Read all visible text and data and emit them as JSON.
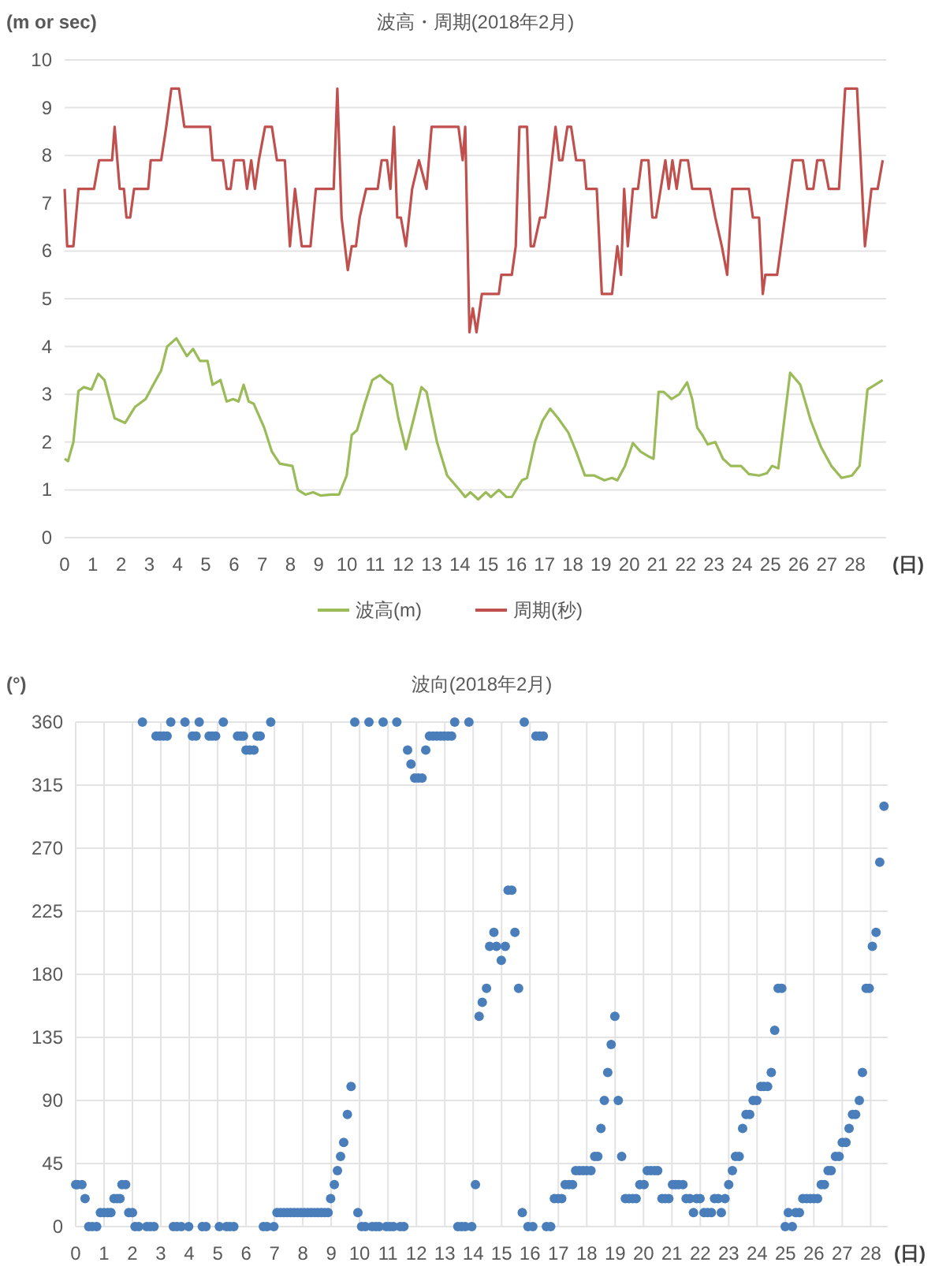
{
  "chart_data": [
    {
      "type": "line",
      "title": "波高・周期(2018年2月)",
      "ylabel": "(m or sec)",
      "xlabel": "(日)",
      "xlim": [
        0,
        29.1
      ],
      "xticks": [
        0,
        1,
        2,
        3,
        4,
        5,
        6,
        7,
        8,
        9,
        10,
        11,
        12,
        13,
        14,
        15,
        16,
        17,
        18,
        19,
        20,
        21,
        22,
        23,
        24,
        25,
        26,
        27,
        28
      ],
      "ylim": [
        0,
        10
      ],
      "yticks": [
        0,
        1,
        2,
        3,
        4,
        5,
        6,
        7,
        8,
        9,
        10
      ],
      "grid": "y",
      "legend": "bottom",
      "series": [
        {
          "name": "波高(m)",
          "color": "#9bbb59",
          "x": [
            0,
            0.12,
            0.31,
            0.49,
            0.68,
            0.95,
            1.19,
            1.41,
            1.59,
            1.77,
            2.14,
            2.5,
            2.87,
            3.14,
            3.42,
            3.63,
            3.96,
            4.33,
            4.55,
            4.79,
            5.06,
            5.24,
            5.52,
            5.74,
            5.97,
            6.16,
            6.34,
            6.52,
            6.7,
            7.07,
            7.34,
            7.62,
            8.07,
            8.26,
            8.53,
            8.8,
            9.08,
            9.44,
            9.72,
            9.99,
            10.17,
            10.36,
            10.63,
            10.9,
            11.18,
            11.36,
            11.6,
            11.82,
            12.09,
            12.37,
            12.64,
            12.82,
            13.19,
            13.55,
            14.0,
            14.19,
            14.37,
            14.65,
            14.92,
            15.1,
            15.38,
            15.65,
            15.84,
            16.2,
            16.38,
            16.66,
            16.93,
            17.2,
            17.48,
            17.84,
            18.12,
            18.43,
            18.76,
            19.12,
            19.39,
            19.58,
            19.85,
            20.13,
            20.4,
            20.68,
            20.86,
            21.04,
            21.22,
            21.5,
            21.77,
            22.05,
            22.23,
            22.41,
            22.59,
            22.78,
            23.05,
            23.32,
            23.6,
            23.96,
            24.24,
            24.6,
            24.88,
            25.06,
            25.28,
            25.7,
            26.06,
            26.43,
            26.79,
            27.16,
            27.52,
            27.89,
            28.16,
            28.44,
            28.71,
            28.98
          ],
          "values": [
            1.65,
            1.6,
            2.0,
            3.07,
            3.15,
            3.1,
            3.43,
            3.3,
            2.9,
            2.5,
            2.4,
            2.74,
            2.9,
            3.2,
            3.5,
            4.0,
            4.17,
            3.8,
            3.95,
            3.7,
            3.7,
            3.2,
            3.3,
            2.85,
            2.9,
            2.85,
            3.2,
            2.85,
            2.8,
            2.3,
            1.8,
            1.55,
            1.5,
            1.0,
            0.9,
            0.95,
            0.88,
            0.9,
            0.9,
            1.3,
            2.15,
            2.25,
            2.8,
            3.3,
            3.4,
            3.3,
            3.2,
            2.5,
            1.85,
            2.5,
            3.15,
            3.05,
            2.0,
            1.3,
            0.99,
            0.85,
            0.95,
            0.8,
            0.95,
            0.85,
            1.0,
            0.85,
            0.85,
            1.2,
            1.25,
            2.0,
            2.45,
            2.7,
            2.5,
            2.2,
            1.8,
            1.3,
            1.3,
            1.2,
            1.25,
            1.2,
            1.5,
            1.98,
            1.8,
            1.7,
            1.65,
            3.05,
            3.05,
            2.9,
            3.0,
            3.25,
            2.9,
            2.3,
            2.15,
            1.95,
            2.0,
            1.65,
            1.5,
            1.5,
            1.33,
            1.3,
            1.35,
            1.5,
            1.45,
            3.45,
            3.2,
            2.45,
            1.9,
            1.5,
            1.25,
            1.3,
            1.5,
            3.1,
            3.2,
            3.3
          ]
        },
        {
          "name": "周期(秒)",
          "color": "#c0504d",
          "x": [
            0,
            0.09,
            0.31,
            0.49,
            1.04,
            1.22,
            1.68,
            1.77,
            1.95,
            2.1,
            2.19,
            2.32,
            2.46,
            2.96,
            3.05,
            3.42,
            3.6,
            3.78,
            4.05,
            4.24,
            5.15,
            5.24,
            5.61,
            5.74,
            5.88,
            6.01,
            6.34,
            6.46,
            6.61,
            6.74,
            6.88,
            7.1,
            7.34,
            7.52,
            7.8,
            7.98,
            8.16,
            8.4,
            8.71,
            8.9,
            9.53,
            9.66,
            9.81,
            10.03,
            10.17,
            10.32,
            10.45,
            10.68,
            11.09,
            11.23,
            11.42,
            11.54,
            11.67,
            11.78,
            11.91,
            12.09,
            12.31,
            12.55,
            12.82,
            13.0,
            13.95,
            14.1,
            14.19,
            14.34,
            14.46,
            14.59,
            14.78,
            15.38,
            15.47,
            15.84,
            15.98,
            16.11,
            16.38,
            16.51,
            16.62,
            16.84,
            17.02,
            17.15,
            17.39,
            17.52,
            17.63,
            17.81,
            17.94,
            18.12,
            18.4,
            18.48,
            18.85,
            19.03,
            19.39,
            19.58,
            19.71,
            19.82,
            19.95,
            20.13,
            20.31,
            20.44,
            20.68,
            20.82,
            20.95,
            21.28,
            21.4,
            21.53,
            21.68,
            21.82,
            22.08,
            22.23,
            22.86,
            23.05,
            23.28,
            23.47,
            23.65,
            24.24,
            24.38,
            24.6,
            24.73,
            24.82,
            25.24,
            25.79,
            26.15,
            26.3,
            26.52,
            26.66,
            26.88,
            27.07,
            27.43,
            27.65,
            28.07,
            28.35,
            28.58,
            28.8,
            28.98
          ],
          "values": [
            7.3,
            6.1,
            6.1,
            7.3,
            7.3,
            7.9,
            7.9,
            8.6,
            7.3,
            7.3,
            6.7,
            6.7,
            7.3,
            7.3,
            7.9,
            7.9,
            8.6,
            9.4,
            9.4,
            8.6,
            8.6,
            7.9,
            7.9,
            7.3,
            7.3,
            7.9,
            7.9,
            7.3,
            7.9,
            7.3,
            7.9,
            8.6,
            8.6,
            7.9,
            7.9,
            6.1,
            7.3,
            6.1,
            6.1,
            7.3,
            7.3,
            9.4,
            6.7,
            5.6,
            6.1,
            6.1,
            6.7,
            7.3,
            7.3,
            7.9,
            7.9,
            7.3,
            8.6,
            6.7,
            6.7,
            6.1,
            7.3,
            7.9,
            7.3,
            8.6,
            8.6,
            7.9,
            8.6,
            4.3,
            4.8,
            4.3,
            5.1,
            5.1,
            5.5,
            5.5,
            6.1,
            8.6,
            8.6,
            6.1,
            6.1,
            6.7,
            6.7,
            7.3,
            8.6,
            7.9,
            7.9,
            8.6,
            8.6,
            7.9,
            7.9,
            7.3,
            7.3,
            5.1,
            5.1,
            6.1,
            5.5,
            7.3,
            6.1,
            7.3,
            7.3,
            7.9,
            7.9,
            6.7,
            6.7,
            7.9,
            7.3,
            7.9,
            7.3,
            7.9,
            7.9,
            7.3,
            7.3,
            6.7,
            6.1,
            5.5,
            7.3,
            7.3,
            6.7,
            6.7,
            5.1,
            5.5,
            5.5,
            7.9,
            7.9,
            7.3,
            7.3,
            7.9,
            7.9,
            7.3,
            7.3,
            9.4,
            9.4,
            6.1,
            7.3,
            7.3,
            7.9
          ]
        }
      ]
    },
    {
      "type": "scatter",
      "title": "波向(2018年2月)",
      "ylabel": "(°)",
      "xlabel": "(日)",
      "xlim": [
        0,
        28.6
      ],
      "xticks": [
        0,
        1,
        2,
        3,
        4,
        5,
        6,
        7,
        8,
        9,
        10,
        11,
        12,
        13,
        14,
        15,
        16,
        17,
        18,
        19,
        20,
        21,
        22,
        23,
        24,
        25,
        26,
        27,
        28
      ],
      "ylim": [
        0,
        360
      ],
      "yticks": [
        0,
        45,
        90,
        135,
        180,
        225,
        270,
        315,
        360
      ],
      "grid": true,
      "marker": "circle",
      "series": [
        {
          "color": "#4a7ebb",
          "x": [
            0,
            0.06,
            0.22,
            0.33,
            0.46,
            0.59,
            0.74,
            0.87,
            1.0,
            1.13,
            1.24,
            1.35,
            1.46,
            1.56,
            1.63,
            1.76,
            1.87,
            2.0,
            2.09,
            2.22,
            2.35,
            2.5,
            2.63,
            2.76,
            2.83,
            2.96,
            3.09,
            3.22,
            3.35,
            3.44,
            3.57,
            3.72,
            3.85,
            3.98,
            4.11,
            4.24,
            4.35,
            4.46,
            4.59,
            4.7,
            4.81,
            4.93,
            5.06,
            5.2,
            5.31,
            5.43,
            5.57,
            5.7,
            5.81,
            5.91,
            6.0,
            6.13,
            6.28,
            6.39,
            6.5,
            6.61,
            6.74,
            6.87,
            6.98,
            7.09,
            7.21,
            7.33,
            7.45,
            7.57,
            7.69,
            7.81,
            7.93,
            8.05,
            8.17,
            8.29,
            8.41,
            8.53,
            8.65,
            8.77,
            8.89,
            8.98,
            9.11,
            9.22,
            9.33,
            9.44,
            9.57,
            9.7,
            9.83,
            9.94,
            10.07,
            10.2,
            10.33,
            10.44,
            10.57,
            10.69,
            10.83,
            10.94,
            11.07,
            11.19,
            11.31,
            11.43,
            11.56,
            11.69,
            11.81,
            11.94,
            12.07,
            12.2,
            12.33,
            12.46,
            12.59,
            12.72,
            12.85,
            12.98,
            13.11,
            13.24,
            13.35,
            13.46,
            13.59,
            13.72,
            13.85,
            13.95,
            14.08,
            14.21,
            14.32,
            14.47,
            14.58,
            14.73,
            14.82,
            14.99,
            15.13,
            15.23,
            15.36,
            15.47,
            15.6,
            15.73,
            15.8,
            15.93,
            16.1,
            16.21,
            16.34,
            16.47,
            16.58,
            16.73,
            16.86,
            16.99,
            17.12,
            17.24,
            17.37,
            17.5,
            17.61,
            17.74,
            17.87,
            18.0,
            18.15,
            18.28,
            18.39,
            18.5,
            18.62,
            18.74,
            18.86,
            18.99,
            19.11,
            19.23,
            19.36,
            19.49,
            19.62,
            19.74,
            19.87,
            20.02,
            20.13,
            20.26,
            20.39,
            20.5,
            20.65,
            20.76,
            20.89,
            21.02,
            21.13,
            21.24,
            21.39,
            21.5,
            21.63,
            21.76,
            21.87,
            21.99,
            22.13,
            22.26,
            22.39,
            22.5,
            22.63,
            22.74,
            22.87,
            23.0,
            23.13,
            23.24,
            23.37,
            23.49,
            23.61,
            23.74,
            23.86,
            23.99,
            24.13,
            24.24,
            24.37,
            24.5,
            24.62,
            24.74,
            24.87,
            24.99,
            25.1,
            25.24,
            25.36,
            25.49,
            25.61,
            25.74,
            25.87,
            26.0,
            26.13,
            26.26,
            26.37,
            26.5,
            26.61,
            26.76,
            26.89,
            27.0,
            27.13,
            27.24,
            27.36,
            27.47,
            27.6,
            27.71,
            27.84,
            27.95,
            28.06,
            28.19,
            28.32,
            28.47
          ],
          "values": [
            30,
            30,
            30,
            20,
            0,
            0,
            0,
            10,
            10,
            10,
            10,
            20,
            20,
            20,
            30,
            30,
            10,
            10,
            0,
            0,
            360,
            0,
            0,
            0,
            350,
            350,
            350,
            350,
            360,
            0,
            0,
            0,
            360,
            0,
            350,
            350,
            360,
            0,
            0,
            350,
            350,
            350,
            0,
            360,
            0,
            0,
            0,
            350,
            350,
            350,
            340,
            340,
            340,
            350,
            350,
            0,
            0,
            360,
            0,
            10,
            10,
            10,
            10,
            10,
            10,
            10,
            10,
            10,
            10,
            10,
            10,
            10,
            10,
            10,
            10,
            20,
            30,
            40,
            50,
            60,
            80,
            100,
            360,
            10,
            0,
            0,
            360,
            0,
            0,
            0,
            360,
            0,
            0,
            0,
            360,
            0,
            0,
            340,
            330,
            320,
            320,
            320,
            340,
            350,
            350,
            350,
            350,
            350,
            350,
            350,
            360,
            0,
            0,
            0,
            360,
            0,
            30,
            150,
            160,
            170,
            200,
            210,
            200,
            190,
            200,
            240,
            240,
            210,
            170,
            10,
            360,
            0,
            0,
            350,
            350,
            350,
            0,
            0,
            20,
            20,
            20,
            30,
            30,
            30,
            40,
            40,
            40,
            40,
            40,
            50,
            50,
            70,
            90,
            110,
            130,
            150,
            90,
            50,
            20,
            20,
            20,
            20,
            30,
            30,
            40,
            40,
            40,
            40,
            20,
            20,
            20,
            30,
            30,
            30,
            30,
            20,
            20,
            10,
            20,
            20,
            10,
            10,
            10,
            20,
            20,
            10,
            20,
            30,
            40,
            50,
            50,
            70,
            80,
            80,
            90,
            90,
            100,
            100,
            100,
            110,
            140,
            170,
            170,
            0,
            10,
            0,
            10,
            10,
            20,
            20,
            20,
            20,
            20,
            30,
            30,
            40,
            40,
            50,
            50,
            60,
            60,
            70,
            80,
            80,
            90,
            110,
            170,
            170,
            200,
            210,
            260,
            300
          ]
        }
      ]
    }
  ]
}
